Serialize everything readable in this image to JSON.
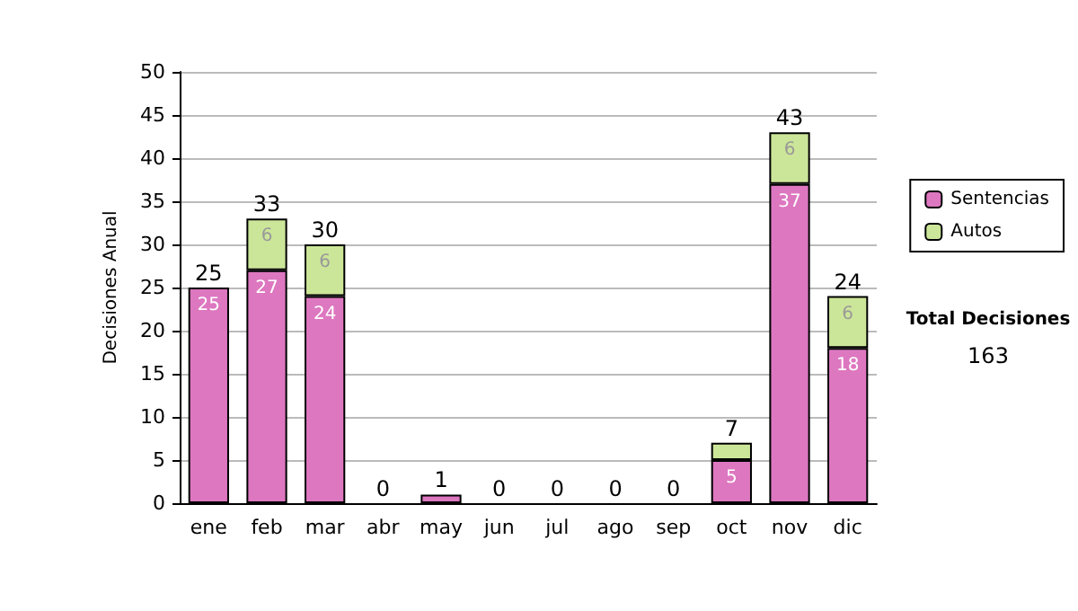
{
  "chart_data": {
    "type": "bar",
    "stacked": true,
    "ylabel": "Decisiones Anual",
    "categories": [
      "ene",
      "feb",
      "mar",
      "abr",
      "may",
      "jun",
      "jul",
      "ago",
      "sep",
      "oct",
      "nov",
      "dic"
    ],
    "series": [
      {
        "name": "Sentencias",
        "color": "#dd77c0",
        "values": [
          25,
          27,
          24,
          0,
          1,
          0,
          0,
          0,
          0,
          5,
          37,
          18
        ],
        "value_labels": [
          "25",
          "27",
          "24",
          null,
          null,
          null,
          null,
          null,
          null,
          "5",
          "37",
          "18"
        ]
      },
      {
        "name": "Autos",
        "color": "#cce699",
        "values": [
          0,
          6,
          6,
          0,
          0,
          0,
          0,
          0,
          0,
          2,
          6,
          6
        ],
        "value_labels": [
          null,
          "6",
          "6",
          null,
          null,
          null,
          null,
          null,
          null,
          null,
          "6",
          "6"
        ]
      }
    ],
    "totals": [
      "25",
      "33",
      "30",
      "0",
      "1",
      "0",
      "0",
      "0",
      "0",
      "7",
      "43",
      "24"
    ],
    "ylim": [
      0,
      50
    ],
    "yticks": [
      0,
      5,
      10,
      15,
      20,
      25,
      30,
      35,
      40,
      45,
      50
    ],
    "grid": "y",
    "legend": "right",
    "annotations": [
      "Total Decisiones",
      "163"
    ]
  }
}
